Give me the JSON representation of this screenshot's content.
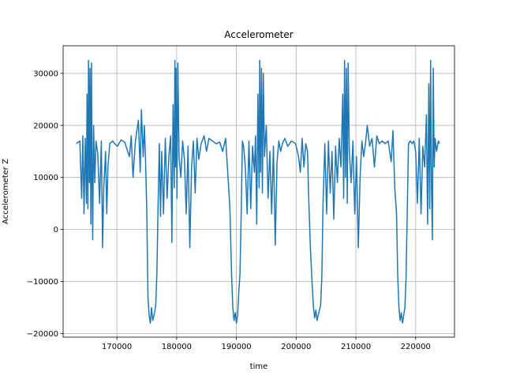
{
  "chart_data": {
    "type": "line",
    "title": "Accelerometer",
    "xlabel": "time",
    "ylabel": "Accelerometer Z",
    "xlim": [
      161000,
      226500
    ],
    "ylim": [
      -20700,
      35300
    ],
    "grid": true,
    "x_ticks": [
      170000,
      180000,
      190000,
      200000,
      210000,
      220000
    ],
    "x_tick_labels": [
      "170000",
      "180000",
      "190000",
      "200000",
      "210000",
      "220000"
    ],
    "y_ticks": [
      -20000,
      -10000,
      0,
      10000,
      20000,
      30000
    ],
    "y_tick_labels": [
      "−20000",
      "−10000",
      "0",
      "10000",
      "20000",
      "30000"
    ],
    "colors": {
      "series": "#1f77b4",
      "grid": "#b0b0b0",
      "axes": "#000000"
    },
    "series": [
      {
        "points": [
          [
            163200,
            16500
          ],
          [
            163800,
            17000
          ],
          [
            164100,
            6000
          ],
          [
            164300,
            18000
          ],
          [
            164500,
            3000
          ],
          [
            164700,
            17500
          ],
          [
            164900,
            5000
          ],
          [
            165000,
            26000
          ],
          [
            165150,
            4000
          ],
          [
            165250,
            32500
          ],
          [
            165400,
            9000
          ],
          [
            165500,
            31000
          ],
          [
            165650,
            1000
          ],
          [
            165750,
            32000
          ],
          [
            165850,
            12000
          ],
          [
            165950,
            -2000
          ],
          [
            166100,
            20000
          ],
          [
            166300,
            9000
          ],
          [
            166500,
            17000
          ],
          [
            166800,
            14500
          ],
          [
            167100,
            5000
          ],
          [
            167400,
            17000
          ],
          [
            167600,
            -3500
          ],
          [
            167800,
            8000
          ],
          [
            168100,
            15000
          ],
          [
            168300,
            3000
          ],
          [
            168500,
            12000
          ],
          [
            168800,
            16500
          ],
          [
            169300,
            17000
          ],
          [
            169600,
            16500
          ],
          [
            170100,
            16000
          ],
          [
            170700,
            17200
          ],
          [
            171300,
            16800
          ],
          [
            172100,
            14000
          ],
          [
            172400,
            18000
          ],
          [
            172700,
            10000
          ],
          [
            173100,
            17000
          ],
          [
            173600,
            21000
          ],
          [
            173900,
            11000
          ],
          [
            174100,
            23000
          ],
          [
            174400,
            14000
          ],
          [
            174600,
            20000
          ],
          [
            174800,
            13000
          ],
          [
            175000,
            3500
          ],
          [
            175200,
            -13000
          ],
          [
            175400,
            -16500
          ],
          [
            175600,
            -18000
          ],
          [
            175800,
            -15000
          ],
          [
            176000,
            -17500
          ],
          [
            176300,
            -16000
          ],
          [
            176500,
            -14500
          ],
          [
            176700,
            -8000
          ],
          [
            176900,
            5000
          ],
          [
            177100,
            16500
          ],
          [
            177300,
            2500
          ],
          [
            177500,
            15000
          ],
          [
            177800,
            3000
          ],
          [
            178100,
            17500
          ],
          [
            178400,
            6000
          ],
          [
            178700,
            14000
          ],
          [
            179000,
            18000
          ],
          [
            179200,
            -2500
          ],
          [
            179400,
            24000
          ],
          [
            179600,
            8000
          ],
          [
            179700,
            32500
          ],
          [
            179800,
            12000
          ],
          [
            179900,
            31000
          ],
          [
            180050,
            6000
          ],
          [
            180200,
            32000
          ],
          [
            180400,
            14000
          ],
          [
            180700,
            10000
          ],
          [
            181000,
            17000
          ],
          [
            181300,
            13500
          ],
          [
            181600,
            3000
          ],
          [
            181900,
            16000
          ],
          [
            182200,
            -3500
          ],
          [
            182500,
            12000
          ],
          [
            182800,
            17000
          ],
          [
            183100,
            7000
          ],
          [
            183400,
            17500
          ],
          [
            183700,
            13500
          ],
          [
            184100,
            16500
          ],
          [
            184600,
            18000
          ],
          [
            185000,
            15000
          ],
          [
            185400,
            17500
          ],
          [
            186000,
            17000
          ],
          [
            186600,
            16500
          ],
          [
            187200,
            16800
          ],
          [
            187700,
            15000
          ],
          [
            188200,
            17500
          ],
          [
            188600,
            10000
          ],
          [
            188900,
            4500
          ],
          [
            189200,
            -9000
          ],
          [
            189400,
            -15000
          ],
          [
            189600,
            -17500
          ],
          [
            189800,
            -16000
          ],
          [
            190000,
            -18000
          ],
          [
            190200,
            -16500
          ],
          [
            190400,
            -12000
          ],
          [
            190600,
            -8500
          ],
          [
            190800,
            3000
          ],
          [
            191000,
            17000
          ],
          [
            191200,
            16000
          ],
          [
            191500,
            12000
          ],
          [
            191800,
            3000
          ],
          [
            192100,
            17000
          ],
          [
            192400,
            4000
          ],
          [
            192700,
            16000
          ],
          [
            193000,
            11000
          ],
          [
            193200,
            18000
          ],
          [
            193400,
            1000
          ],
          [
            193600,
            26000
          ],
          [
            193800,
            8000
          ],
          [
            193900,
            32500
          ],
          [
            194050,
            11000
          ],
          [
            194200,
            31000
          ],
          [
            194350,
            7000
          ],
          [
            194500,
            30000
          ],
          [
            194700,
            14000
          ],
          [
            195000,
            20000
          ],
          [
            195300,
            6000
          ],
          [
            195600,
            15000
          ],
          [
            195900,
            3000
          ],
          [
            196200,
            16000
          ],
          [
            196500,
            -3000
          ],
          [
            196800,
            13000
          ],
          [
            197100,
            17000
          ],
          [
            197400,
            15000
          ],
          [
            197700,
            16500
          ],
          [
            198100,
            17500
          ],
          [
            198600,
            16000
          ],
          [
            199200,
            17000
          ],
          [
            199900,
            16500
          ],
          [
            200400,
            14000
          ],
          [
            200700,
            11000
          ],
          [
            201000,
            17500
          ],
          [
            201300,
            12000
          ],
          [
            201600,
            16500
          ],
          [
            201900,
            15000
          ],
          [
            202100,
            6000
          ],
          [
            202400,
            -4000
          ],
          [
            202700,
            -11000
          ],
          [
            202900,
            -15000
          ],
          [
            203100,
            -17000
          ],
          [
            203300,
            -15500
          ],
          [
            203500,
            -17500
          ],
          [
            203800,
            -16000
          ],
          [
            204100,
            -14500
          ],
          [
            204300,
            -9000
          ],
          [
            204500,
            5000
          ],
          [
            204800,
            16500
          ],
          [
            205100,
            3000
          ],
          [
            205400,
            17000
          ],
          [
            205700,
            7000
          ],
          [
            206000,
            15000
          ],
          [
            206300,
            2000
          ],
          [
            206600,
            16000
          ],
          [
            206900,
            9000
          ],
          [
            207200,
            17500
          ],
          [
            207500,
            12000
          ],
          [
            207800,
            26000
          ],
          [
            207950,
            6000
          ],
          [
            208100,
            32500
          ],
          [
            208250,
            10000
          ],
          [
            208400,
            31000
          ],
          [
            208550,
            5000
          ],
          [
            208700,
            32000
          ],
          [
            208900,
            15000
          ],
          [
            209200,
            9000
          ],
          [
            209500,
            17000
          ],
          [
            209800,
            3000
          ],
          [
            210100,
            14000
          ],
          [
            210400,
            -3500
          ],
          [
            210700,
            10000
          ],
          [
            211000,
            17000
          ],
          [
            211300,
            14000
          ],
          [
            211600,
            16500
          ],
          [
            211900,
            20000
          ],
          [
            212300,
            16000
          ],
          [
            212700,
            17500
          ],
          [
            213100,
            12000
          ],
          [
            213500,
            18000
          ],
          [
            213900,
            16500
          ],
          [
            214400,
            17000
          ],
          [
            214900,
            16500
          ],
          [
            215400,
            17000
          ],
          [
            215900,
            13000
          ],
          [
            216200,
            19000
          ],
          [
            216500,
            8000
          ],
          [
            216800,
            3000
          ],
          [
            217000,
            -9000
          ],
          [
            217200,
            -15000
          ],
          [
            217400,
            -17500
          ],
          [
            217600,
            -16000
          ],
          [
            217800,
            -18000
          ],
          [
            218000,
            -16500
          ],
          [
            218200,
            -15000
          ],
          [
            218400,
            -9000
          ],
          [
            218600,
            4000
          ],
          [
            218800,
            16500
          ],
          [
            219100,
            17000
          ],
          [
            219400,
            16500
          ],
          [
            219700,
            17000
          ],
          [
            220000,
            15000
          ],
          [
            220300,
            5000
          ],
          [
            220600,
            17500
          ],
          [
            220900,
            3000
          ],
          [
            221200,
            16000
          ],
          [
            221500,
            12000
          ],
          [
            221800,
            22000
          ],
          [
            222000,
            1000
          ],
          [
            222200,
            28000
          ],
          [
            222350,
            4000
          ],
          [
            222500,
            32500
          ],
          [
            222650,
            8000
          ],
          [
            222800,
            -2000
          ],
          [
            222950,
            31000
          ],
          [
            223100,
            12000
          ],
          [
            223250,
            17500
          ],
          [
            223500,
            15000
          ],
          [
            223800,
            17000
          ],
          [
            224000,
            16500
          ]
        ]
      }
    ]
  }
}
